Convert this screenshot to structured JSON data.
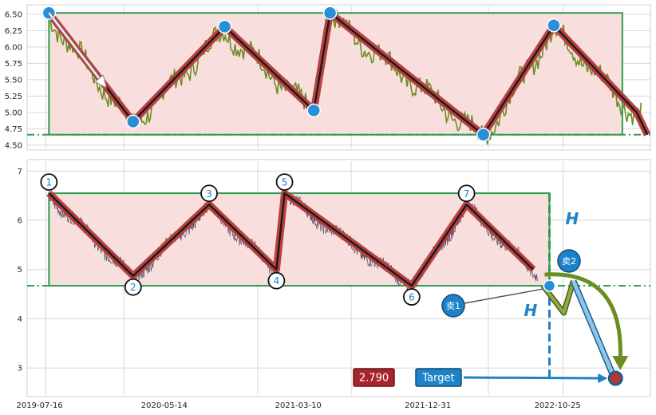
{
  "chart_data": [
    {
      "type": "line",
      "panel": "top",
      "ylim": [
        4.45,
        6.62
      ],
      "yticks": [
        "6.50",
        "6.25",
        "6.00",
        "5.75",
        "5.50",
        "5.25",
        "5.00",
        "4.75",
        "4.50"
      ],
      "ytick_values": [
        6.5,
        6.25,
        6.0,
        5.75,
        5.5,
        5.25,
        5.0,
        4.75,
        4.5
      ],
      "grid": true,
      "series_color": "#6b8e23",
      "zigzag_points": [
        {
          "t": 0.035,
          "v": 6.52
        },
        {
          "t": 0.17,
          "v": 4.86
        },
        {
          "t": 0.317,
          "v": 6.31
        },
        {
          "t": 0.46,
          "v": 5.03
        },
        {
          "t": 0.486,
          "v": 6.52
        },
        {
          "t": 0.732,
          "v": 4.66
        },
        {
          "t": 0.845,
          "v": 6.33
        },
        {
          "t": 0.978,
          "v": 5.0
        }
      ],
      "range_box": {
        "top": 6.52,
        "bottom": 4.66,
        "dash_line": 4.66
      }
    },
    {
      "type": "line",
      "panel": "bottom",
      "ylim": [
        2.45,
        7.2
      ],
      "yticks": [
        "7",
        "6",
        "5",
        "4",
        "3"
      ],
      "ytick_values": [
        7,
        6,
        5,
        4,
        3
      ],
      "xticks": [
        "2019-07-16",
        "2020-05-14",
        "2021-03-10",
        "2021-12-31",
        "2022-10-25"
      ],
      "grid": true,
      "series_color": "#4a5068",
      "zigzag_points": [
        {
          "label": "1",
          "t": 0.035,
          "v": 6.55
        },
        {
          "label": "2",
          "t": 0.17,
          "v": 4.87
        },
        {
          "label": "3",
          "t": 0.292,
          "v": 6.32
        },
        {
          "label": "4",
          "t": 0.4,
          "v": 5.0
        },
        {
          "label": "5",
          "t": 0.413,
          "v": 6.55
        },
        {
          "label": "6",
          "t": 0.617,
          "v": 4.67
        },
        {
          "label": "7",
          "t": 0.705,
          "v": 6.32
        },
        {
          "label": "",
          "t": 0.812,
          "v": 5.0
        }
      ],
      "range_box": {
        "top": 6.55,
        "bottom": 4.67,
        "dash_line": 4.67
      },
      "h_label": "H",
      "sell_points": [
        {
          "label": "卖1",
          "v": 4.67
        },
        {
          "label": "卖2",
          "v": 4.67
        }
      ],
      "target_label": "Target",
      "target_value": "2.790",
      "target_numeric": 2.79
    }
  ],
  "colors": {
    "zigzag": "#b84040",
    "zigzag_core": "#1a1a1a",
    "box": "#2e9e4f",
    "fill": "#f8dedc",
    "accent_blue": "#1e82c8",
    "marker_blue": "#2a8fd6",
    "target_red": "#a8262b",
    "olive_arrow": "#6b8e23"
  }
}
